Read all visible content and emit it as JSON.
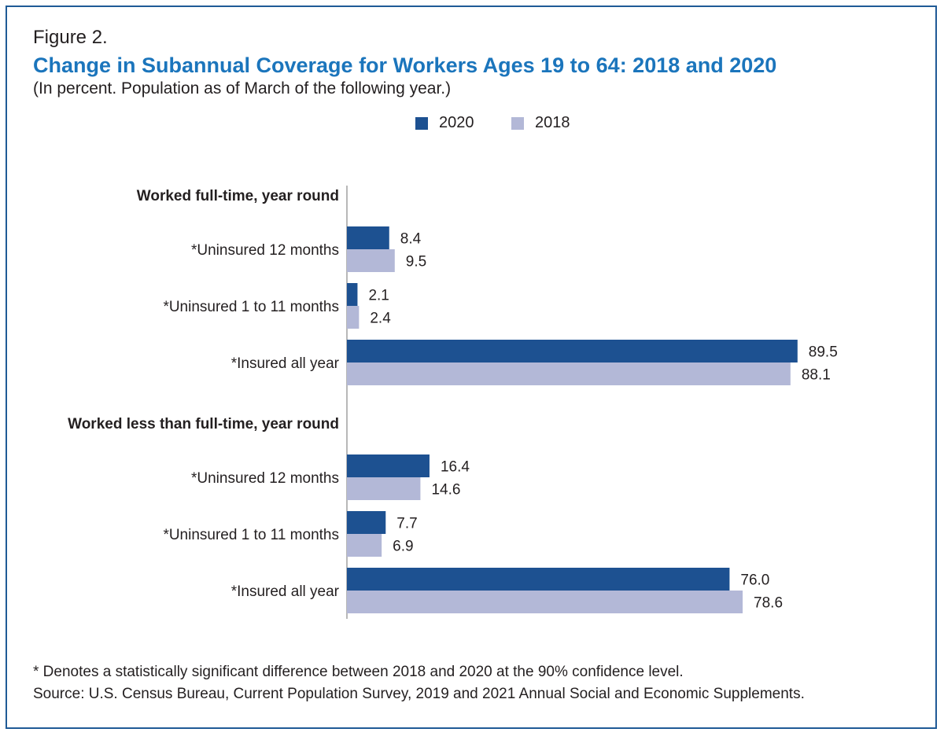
{
  "figure_label": "Figure 2.",
  "title": "Change in Subannual Coverage for Workers Ages 19 to 64: 2018 and 2020",
  "subtitle": "(In percent. Population as of March of the following year.)",
  "colors": {
    "series_2020": "#1d5191",
    "series_2018": "#b3b8d7",
    "title": "#1b75bc",
    "border": "#1f5a96"
  },
  "legend": [
    {
      "label": "2020",
      "color": "#1d5191"
    },
    {
      "label": "2018",
      "color": "#b3b8d7"
    }
  ],
  "chart_data": {
    "type": "bar",
    "orientation": "horizontal",
    "xlim": [
      0,
      100
    ],
    "groups": [
      {
        "label": "Worked full-time, year round",
        "categories": [
          "*Uninsured 12 months",
          "*Uninsured 1 to 11 months",
          "*Insured all year"
        ],
        "series": [
          {
            "name": "2020",
            "values": [
              8.4,
              2.1,
              89.5
            ]
          },
          {
            "name": "2018",
            "values": [
              9.5,
              2.4,
              88.1
            ]
          }
        ]
      },
      {
        "label": "Worked less than full-time, year round",
        "categories": [
          "*Uninsured 12 months",
          "*Uninsured 1 to 11 months",
          "*Insured all year"
        ],
        "series": [
          {
            "name": "2020",
            "values": [
              16.4,
              7.7,
              76.0
            ]
          },
          {
            "name": "2018",
            "values": [
              14.6,
              6.9,
              78.6
            ]
          }
        ]
      }
    ]
  },
  "notes": {
    "significance": "* Denotes a statistically significant difference between 2018 and 2020 at the 90% confidence level.",
    "source": "Source: U.S. Census Bureau, Current Population Survey, 2019 and 2021 Annual Social and Economic Supplements."
  }
}
